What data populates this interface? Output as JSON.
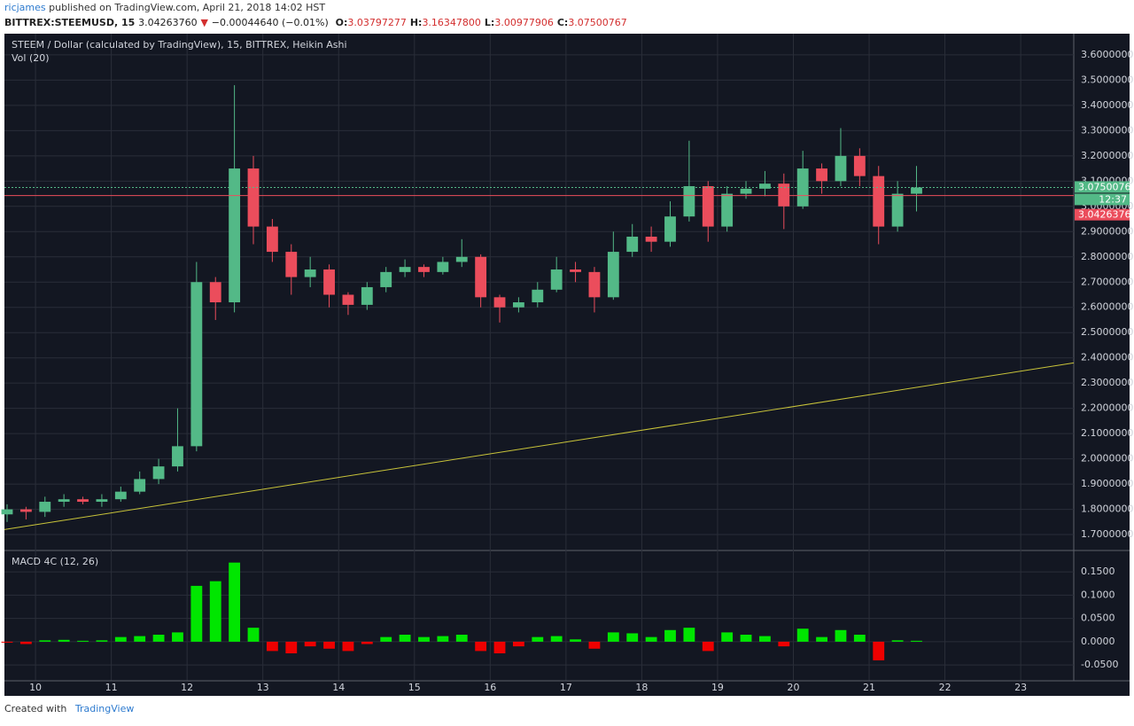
{
  "header": {
    "user": "ricjames",
    "published": "published on TradingView.com, April 21, 2018 14:02 HST",
    "symbol": "BITTREX:STEEMUSD, 15",
    "price": "3.04263760",
    "change": "−0.00044640 (−0.01%)",
    "ohlc": [
      {
        "label": "O:",
        "value": "3.03797277"
      },
      {
        "label": "H:",
        "value": "3.16347800"
      },
      {
        "label": "L:",
        "value": "3.00977906"
      },
      {
        "label": "C:",
        "value": "3.07500767"
      }
    ]
  },
  "footer": {
    "created": "Created with",
    "brand": "TradingView"
  },
  "chart_data": [
    {
      "type": "candlestick",
      "title": "STEEM / Dollar (calculated by TradingView), 15, BITTREX, Heikin Ashi",
      "subtitle": "Vol (20)",
      "x": [
        9.625,
        9.875,
        10.125,
        10.375,
        10.625,
        10.875,
        11.125,
        11.375,
        11.625,
        11.875,
        12.125,
        12.375,
        12.625,
        12.875,
        13.125,
        13.375,
        13.625,
        13.875,
        14.125,
        14.375,
        14.625,
        14.875,
        15.125,
        15.375,
        15.625,
        15.875,
        16.125,
        16.375,
        16.625,
        16.875,
        17.125,
        17.375,
        17.625,
        17.875,
        18.125,
        18.375,
        18.625,
        18.875,
        19.125,
        19.375,
        19.625,
        19.875,
        20.125,
        20.375,
        20.625,
        20.875,
        21.125,
        21.375,
        21.625
      ],
      "open": [
        1.78,
        1.8,
        1.79,
        1.83,
        1.84,
        1.83,
        1.84,
        1.87,
        1.92,
        1.97,
        2.05,
        2.7,
        2.62,
        3.15,
        2.92,
        2.82,
        2.72,
        2.75,
        2.65,
        2.61,
        2.68,
        2.74,
        2.76,
        2.74,
        2.78,
        2.8,
        2.64,
        2.6,
        2.62,
        2.67,
        2.75,
        2.74,
        2.64,
        2.82,
        2.88,
        2.86,
        2.96,
        3.08,
        2.92,
        3.05,
        3.07,
        3.09,
        3.0,
        3.15,
        3.1,
        3.2,
        3.12,
        2.92,
        3.05
      ],
      "high": [
        1.82,
        1.81,
        1.85,
        1.86,
        1.85,
        1.86,
        1.89,
        1.95,
        2.0,
        2.2,
        2.78,
        2.72,
        3.48,
        3.2,
        2.95,
        2.85,
        2.8,
        2.77,
        2.66,
        2.7,
        2.76,
        2.79,
        2.77,
        2.8,
        2.87,
        2.81,
        2.65,
        2.64,
        2.7,
        2.8,
        2.78,
        2.76,
        2.9,
        2.93,
        2.92,
        3.02,
        3.26,
        3.1,
        3.08,
        3.1,
        3.14,
        3.13,
        3.22,
        3.17,
        3.31,
        3.23,
        3.16,
        3.1,
        3.16
      ],
      "low": [
        1.75,
        1.76,
        1.77,
        1.81,
        1.82,
        1.81,
        1.83,
        1.86,
        1.9,
        1.95,
        2.03,
        2.55,
        2.58,
        2.85,
        2.78,
        2.65,
        2.68,
        2.6,
        2.57,
        2.59,
        2.66,
        2.72,
        2.72,
        2.73,
        2.76,
        2.6,
        2.54,
        2.58,
        2.6,
        2.66,
        2.7,
        2.58,
        2.63,
        2.8,
        2.82,
        2.84,
        2.94,
        2.86,
        2.9,
        3.03,
        3.04,
        2.91,
        2.99,
        3.05,
        3.08,
        3.08,
        2.85,
        2.9,
        2.98
      ],
      "close": [
        1.8,
        1.79,
        1.83,
        1.84,
        1.83,
        1.84,
        1.87,
        1.92,
        1.97,
        2.05,
        2.7,
        2.62,
        3.15,
        2.92,
        2.82,
        2.72,
        2.75,
        2.65,
        2.61,
        2.68,
        2.74,
        2.76,
        2.74,
        2.78,
        2.8,
        2.64,
        2.6,
        2.62,
        2.67,
        2.75,
        2.74,
        2.64,
        2.82,
        2.88,
        2.86,
        2.96,
        3.08,
        2.92,
        3.05,
        3.07,
        3.09,
        3.0,
        3.15,
        3.1,
        3.2,
        3.12,
        2.92,
        3.05,
        3.075
      ],
      "up_color": "#53b987",
      "down_color": "#eb4d5c",
      "trendline": {
        "x": [
          9.59,
          23.7
        ],
        "values": [
          1.72,
          2.38
        ],
        "color": "#c9c43a"
      },
      "last_close": 3.07500767,
      "last_color": "#53b987",
      "countdown": "12:37",
      "bid_line": {
        "value": 3.0426376,
        "label": "3.04263760"
      },
      "bid_color": "#eb4d5c",
      "xlim": [
        9.59,
        23.7
      ],
      "xticks": [
        10,
        11,
        12,
        13,
        14,
        15,
        16,
        17,
        18,
        19,
        20,
        21,
        22,
        23
      ],
      "ylim": [
        1.637,
        3.684
      ],
      "yticks": [
        {
          "value": 1.7,
          "label": "1.70000000"
        },
        {
          "value": 1.8,
          "label": "1.80000000"
        },
        {
          "value": 1.9,
          "label": "1.90000000"
        },
        {
          "value": 2.0,
          "label": "2.00000000"
        },
        {
          "value": 2.1,
          "label": "2.10000000"
        },
        {
          "value": 2.2,
          "label": "2.20000000"
        },
        {
          "value": 2.3,
          "label": "2.30000000"
        },
        {
          "value": 2.4,
          "label": "2.40000000"
        },
        {
          "value": 2.5,
          "label": "2.50000000"
        },
        {
          "value": 2.6,
          "label": "2.60000000"
        },
        {
          "value": 2.7,
          "label": "2.70000000"
        },
        {
          "value": 2.8,
          "label": "2.80000000"
        },
        {
          "value": 2.9,
          "label": "2.90000000"
        },
        {
          "value": 3.0,
          "label": "3.00000000"
        },
        {
          "value": 3.1,
          "label": "3.10000000"
        },
        {
          "value": 3.2,
          "label": "3.20000000"
        },
        {
          "value": 3.3,
          "label": "3.30000000"
        },
        {
          "value": 3.4,
          "label": "3.40000000"
        },
        {
          "value": 3.5,
          "label": "3.50000000"
        },
        {
          "value": 3.6,
          "label": "3.60000000"
        }
      ],
      "grid": true
    },
    {
      "type": "histogram",
      "title": "MACD 4C (12, 26)",
      "x": [
        9.625,
        9.875,
        10.125,
        10.375,
        10.625,
        10.875,
        11.125,
        11.375,
        11.625,
        11.875,
        12.125,
        12.375,
        12.625,
        12.875,
        13.125,
        13.375,
        13.625,
        13.875,
        14.125,
        14.375,
        14.625,
        14.875,
        15.125,
        15.375,
        15.625,
        15.875,
        16.125,
        16.375,
        16.625,
        16.875,
        17.125,
        17.375,
        17.625,
        17.875,
        18.125,
        18.375,
        18.625,
        18.875,
        19.125,
        19.375,
        19.625,
        19.875,
        20.125,
        20.375,
        20.625,
        20.875,
        21.125,
        21.375,
        21.625
      ],
      "values": [
        -0.002,
        -0.005,
        0.003,
        0.004,
        0.002,
        0.003,
        0.01,
        0.012,
        0.015,
        0.02,
        0.12,
        0.13,
        0.17,
        0.03,
        -0.02,
        -0.025,
        -0.01,
        -0.015,
        -0.02,
        -0.005,
        0.01,
        0.015,
        0.01,
        0.012,
        0.015,
        -0.02,
        -0.025,
        -0.01,
        0.01,
        0.012,
        0.005,
        -0.015,
        0.02,
        0.018,
        0.01,
        0.025,
        0.03,
        -0.02,
        0.02,
        0.015,
        0.012,
        -0.01,
        0.028,
        0.01,
        0.025,
        0.015,
        -0.04,
        0.003,
        0.002
      ],
      "up_color": "#00e600",
      "down_color": "#ee0000",
      "xlim": [
        9.59,
        23.7
      ],
      "ylim": [
        -0.084,
        0.196
      ],
      "yticks": [
        {
          "value": -0.05,
          "label": "-0.0500"
        },
        {
          "value": 0,
          "label": "0.0000"
        },
        {
          "value": 0.05,
          "label": "0.0500"
        },
        {
          "value": 0.1,
          "label": "0.1000"
        },
        {
          "value": 0.15,
          "label": "0.1500"
        }
      ],
      "grid": true
    }
  ]
}
